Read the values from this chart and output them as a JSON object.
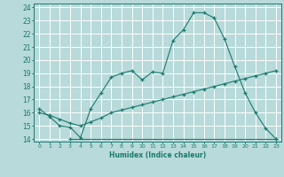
{
  "title": "",
  "xlabel": "Humidex (Indice chaleur)",
  "line_color": "#1a7a6e",
  "bg_color": "#b8dada",
  "grid_color": "#ffffff",
  "xlim": [
    -0.5,
    23.5
  ],
  "ylim": [
    13.8,
    24.3
  ],
  "xticks": [
    0,
    1,
    2,
    3,
    4,
    5,
    6,
    7,
    8,
    9,
    10,
    11,
    12,
    13,
    14,
    15,
    16,
    17,
    18,
    19,
    20,
    21,
    22,
    23
  ],
  "yticks": [
    14,
    15,
    16,
    17,
    18,
    19,
    20,
    21,
    22,
    23,
    24
  ],
  "lines": [
    {
      "x": [
        0,
        1,
        2,
        3,
        4,
        5,
        6,
        7,
        8,
        9,
        10,
        11,
        12,
        13,
        14,
        15,
        16,
        17,
        18,
        19,
        20,
        21,
        22,
        23
      ],
      "y": [
        16.3,
        15.7,
        15.0,
        14.9,
        14.1,
        16.3,
        17.5,
        18.7,
        19.0,
        19.2,
        18.5,
        19.1,
        19.0,
        21.5,
        22.3,
        23.6,
        23.6,
        23.2,
        21.6,
        19.5,
        17.5,
        16.0,
        14.8,
        14.0
      ]
    },
    {
      "x": [
        0,
        1,
        2,
        3,
        4,
        5,
        6,
        7,
        8,
        9,
        10,
        11,
        12,
        13,
        14,
        15,
        16,
        17,
        18,
        19,
        20,
        21,
        22,
        23
      ],
      "y": [
        16.0,
        15.8,
        15.5,
        15.2,
        15.0,
        15.3,
        15.6,
        16.0,
        16.2,
        16.4,
        16.6,
        16.8,
        17.0,
        17.2,
        17.4,
        17.6,
        17.8,
        18.0,
        18.2,
        18.4,
        18.6,
        18.8,
        19.0,
        19.2
      ]
    },
    {
      "x": [
        3,
        23
      ],
      "y": [
        14.0,
        14.0
      ]
    }
  ]
}
